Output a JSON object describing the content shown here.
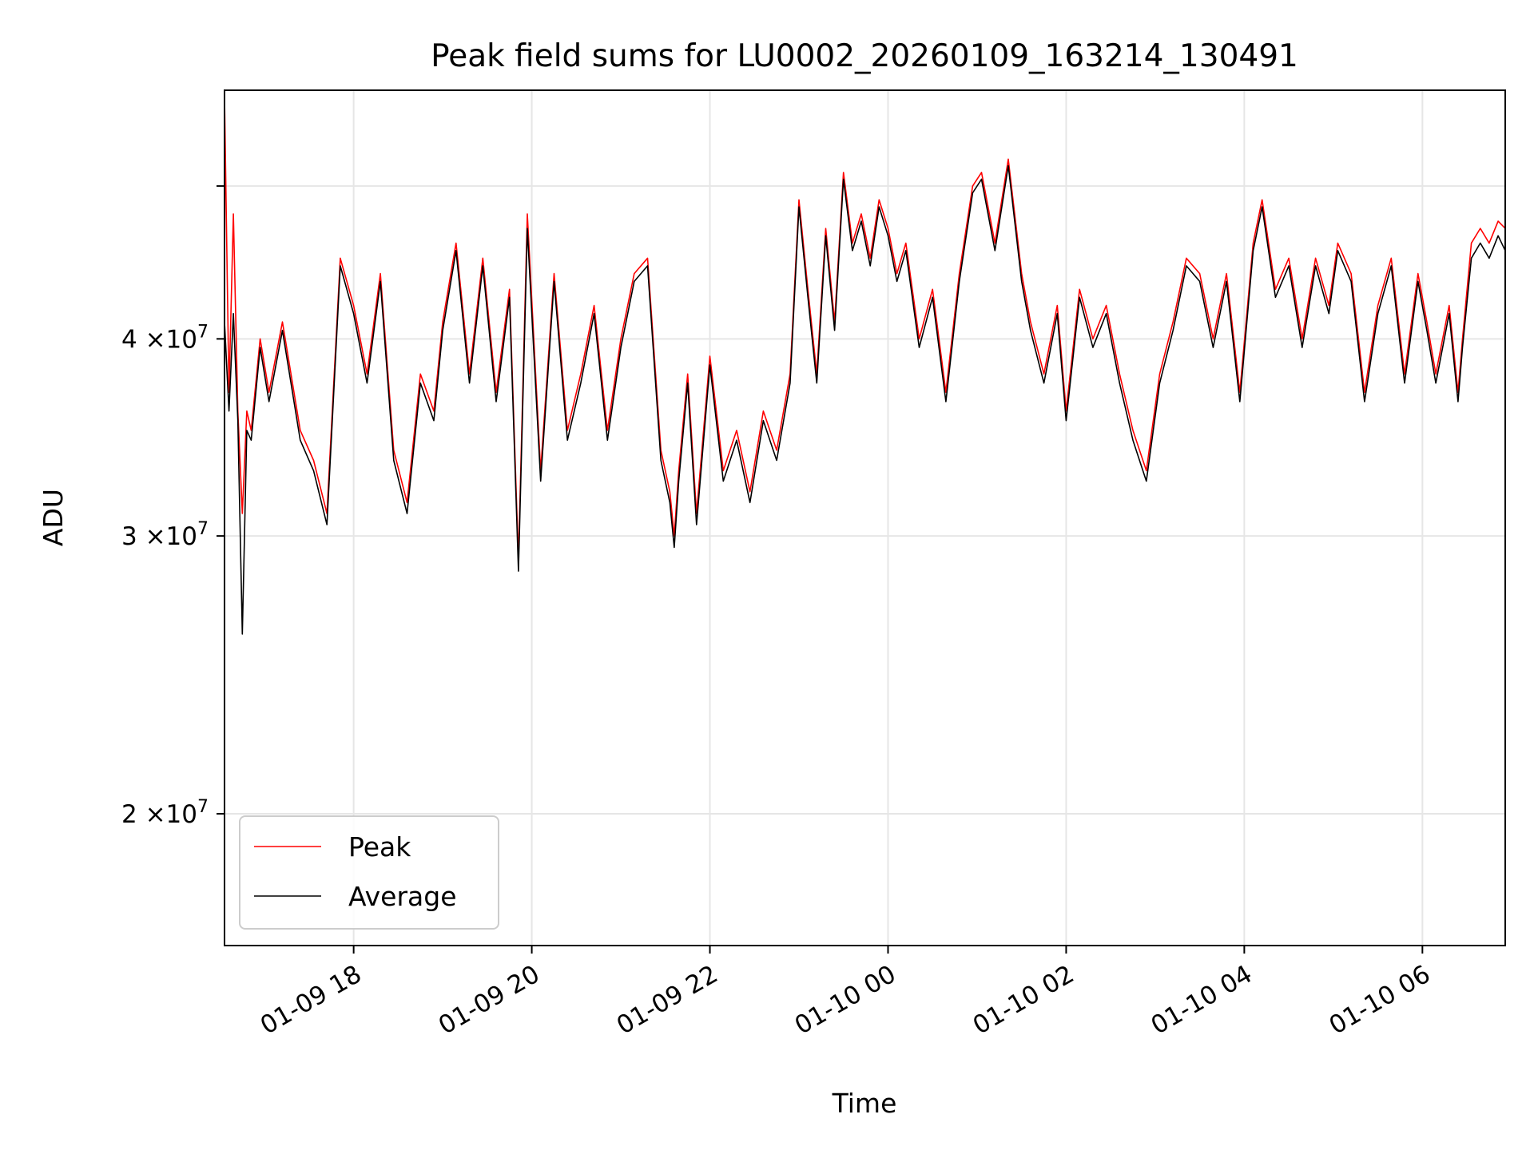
{
  "chart_data": {
    "type": "line",
    "title": "Peak field sums for LU0002_20260109_163214_130491",
    "xlabel": "Time",
    "ylabel": "ADU",
    "y_scale": "log",
    "ylim": [
      16500000,
      57500000
    ],
    "xlim_hours": [
      16.55,
      30.93
    ],
    "grid": true,
    "legend_position": "lower-left",
    "x_ticks": [
      {
        "hour": 18,
        "label": "01-09 18"
      },
      {
        "hour": 20,
        "label": "01-09 20"
      },
      {
        "hour": 22,
        "label": "01-09 22"
      },
      {
        "hour": 24,
        "label": "01-10 00"
      },
      {
        "hour": 26,
        "label": "01-10 02"
      },
      {
        "hour": 28,
        "label": "01-10 04"
      },
      {
        "hour": 30,
        "label": "01-10 06"
      }
    ],
    "y_ticks": [
      {
        "value": 20000000,
        "base": "2",
        "exp": "7"
      },
      {
        "value": 30000000,
        "base": "3",
        "exp": "7"
      },
      {
        "value": 40000000,
        "base": "4",
        "exp": "7"
      },
      {
        "value": 50000000,
        "base": "",
        "exp": ""
      }
    ],
    "y_tick_times": "×10",
    "series": [
      {
        "name": "Peak",
        "color": "#ff0000",
        "hours": [
          16.55,
          16.6,
          16.65,
          16.7,
          16.75,
          16.8,
          16.85,
          16.95,
          17.05,
          17.2,
          17.4,
          17.55,
          17.7,
          17.85,
          18.0,
          18.15,
          18.3,
          18.45,
          18.6,
          18.75,
          18.9,
          19.0,
          19.15,
          19.3,
          19.45,
          19.6,
          19.75,
          19.85,
          19.95,
          20.1,
          20.25,
          20.4,
          20.55,
          20.7,
          20.85,
          21.0,
          21.15,
          21.3,
          21.45,
          21.55,
          21.6,
          21.65,
          21.75,
          21.85,
          22.0,
          22.15,
          22.3,
          22.45,
          22.6,
          22.75,
          22.9,
          23.0,
          23.1,
          23.2,
          23.3,
          23.4,
          23.5,
          23.6,
          23.7,
          23.8,
          23.9,
          24.0,
          24.1,
          24.2,
          24.35,
          24.5,
          24.65,
          24.8,
          24.95,
          25.05,
          25.2,
          25.35,
          25.5,
          25.6,
          25.75,
          25.9,
          26.0,
          26.15,
          26.3,
          26.45,
          26.6,
          26.75,
          26.9,
          27.05,
          27.2,
          27.35,
          27.5,
          27.65,
          27.8,
          27.95,
          28.1,
          28.2,
          28.35,
          28.5,
          28.65,
          28.8,
          28.95,
          29.05,
          29.2,
          29.35,
          29.5,
          29.65,
          29.8,
          29.95,
          30.05,
          30.15,
          30.3,
          30.4,
          30.45,
          30.55,
          30.65,
          30.75,
          30.85,
          30.93
        ],
        "values": [
          57000000,
          37000000,
          48000000,
          36000000,
          31000000,
          36000000,
          35000000,
          40000000,
          37000000,
          41000000,
          35000000,
          33500000,
          31000000,
          45000000,
          42000000,
          38000000,
          44000000,
          34000000,
          31500000,
          38000000,
          36000000,
          41000000,
          46000000,
          38000000,
          45000000,
          37000000,
          43000000,
          29000000,
          48000000,
          33000000,
          44000000,
          35000000,
          38000000,
          42000000,
          35000000,
          40000000,
          44000000,
          45000000,
          34000000,
          32000000,
          30000000,
          33000000,
          38000000,
          31000000,
          39000000,
          33000000,
          35000000,
          32000000,
          36000000,
          34000000,
          38000000,
          49000000,
          43000000,
          38000000,
          47000000,
          41000000,
          51000000,
          46000000,
          48000000,
          45000000,
          49000000,
          47000000,
          44000000,
          46000000,
          40000000,
          43000000,
          37000000,
          44000000,
          50000000,
          51000000,
          46000000,
          52000000,
          44000000,
          41000000,
          38000000,
          42000000,
          36000000,
          43000000,
          40000000,
          42000000,
          38000000,
          35000000,
          33000000,
          38000000,
          41000000,
          45000000,
          44000000,
          40000000,
          44000000,
          37000000,
          46000000,
          49000000,
          43000000,
          45000000,
          40000000,
          45000000,
          42000000,
          46000000,
          44000000,
          37000000,
          42000000,
          45000000,
          38000000,
          44000000,
          41000000,
          38000000,
          42000000,
          37000000,
          40000000,
          46000000,
          47000000,
          46000000,
          47500000,
          47000000
        ]
      },
      {
        "name": "Average",
        "color": "#000000",
        "hours": [
          16.55,
          16.6,
          16.65,
          16.7,
          16.75,
          16.8,
          16.85,
          16.95,
          17.05,
          17.2,
          17.4,
          17.55,
          17.7,
          17.85,
          18.0,
          18.15,
          18.3,
          18.45,
          18.6,
          18.75,
          18.9,
          19.0,
          19.15,
          19.3,
          19.45,
          19.6,
          19.75,
          19.85,
          19.95,
          20.1,
          20.25,
          20.4,
          20.55,
          20.7,
          20.85,
          21.0,
          21.15,
          21.3,
          21.45,
          21.55,
          21.6,
          21.65,
          21.75,
          21.85,
          22.0,
          22.15,
          22.3,
          22.45,
          22.6,
          22.75,
          22.9,
          23.0,
          23.1,
          23.2,
          23.3,
          23.4,
          23.5,
          23.6,
          23.7,
          23.8,
          23.9,
          24.0,
          24.1,
          24.2,
          24.35,
          24.5,
          24.65,
          24.8,
          24.95,
          25.05,
          25.2,
          25.35,
          25.5,
          25.6,
          25.75,
          25.9,
          26.0,
          26.15,
          26.3,
          26.45,
          26.6,
          26.75,
          26.9,
          27.05,
          27.2,
          27.35,
          27.5,
          27.65,
          27.8,
          27.95,
          28.1,
          28.2,
          28.35,
          28.5,
          28.65,
          28.8,
          28.95,
          29.05,
          29.2,
          29.35,
          29.5,
          29.65,
          29.8,
          29.95,
          30.05,
          30.15,
          30.3,
          30.4,
          30.45,
          30.55,
          30.65,
          30.75,
          30.85,
          30.93
        ],
        "values": [
          41000000,
          36000000,
          41500000,
          35500000,
          26000000,
          35000000,
          34500000,
          39500000,
          36500000,
          40500000,
          34500000,
          33000000,
          30500000,
          44500000,
          41500000,
          37500000,
          43500000,
          33500000,
          31000000,
          37500000,
          35500000,
          40500000,
          45500000,
          37500000,
          44500000,
          36500000,
          42500000,
          28500000,
          47000000,
          32500000,
          43500000,
          34500000,
          37500000,
          41500000,
          34500000,
          39500000,
          43500000,
          44500000,
          33500000,
          31500000,
          29500000,
          32500000,
          37500000,
          30500000,
          38500000,
          32500000,
          34500000,
          31500000,
          35500000,
          33500000,
          37500000,
          48500000,
          42500000,
          37500000,
          46500000,
          40500000,
          50500000,
          45500000,
          47500000,
          44500000,
          48500000,
          46500000,
          43500000,
          45500000,
          39500000,
          42500000,
          36500000,
          43500000,
          49500000,
          50500000,
          45500000,
          51500000,
          43500000,
          40500000,
          37500000,
          41500000,
          35500000,
          42500000,
          39500000,
          41500000,
          37500000,
          34500000,
          32500000,
          37500000,
          40500000,
          44500000,
          43500000,
          39500000,
          43500000,
          36500000,
          45500000,
          48500000,
          42500000,
          44500000,
          39500000,
          44500000,
          41500000,
          45500000,
          43500000,
          36500000,
          41500000,
          44500000,
          37500000,
          43500000,
          40500000,
          37500000,
          41500000,
          36500000,
          39500000,
          45000000,
          46000000,
          45000000,
          46500000,
          45500000
        ]
      }
    ]
  }
}
